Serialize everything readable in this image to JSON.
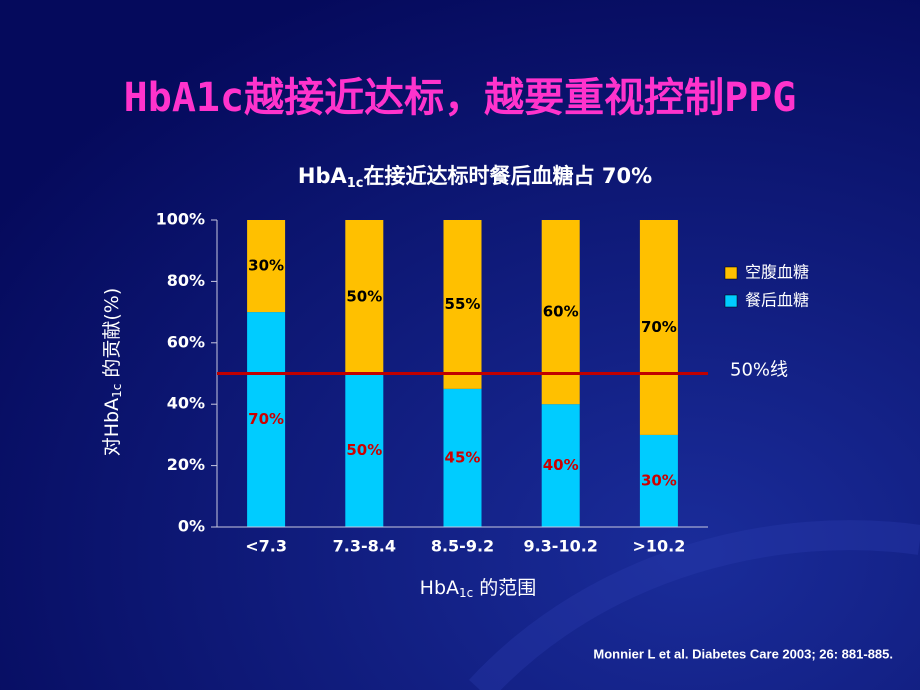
{
  "slide_title": "HbA1c越接近达标，越要重视控制PPG",
  "chart_data": {
    "type": "stacked_bar",
    "title": [
      "HbA",
      "1c",
      "在接近达标时餐后血糖占 70%"
    ],
    "y_label": [
      "对HbA",
      "1c",
      " 的贡献(%)"
    ],
    "x_label": [
      "HbA",
      "1c",
      " 的范围"
    ],
    "categories": [
      "<7.3",
      "7.3-8.4",
      "8.5-9.2",
      "9.3-10.2",
      ">10.2"
    ],
    "series": [
      {
        "name": "餐后血糖",
        "color": "#00ccff",
        "label_color": "#cc0000",
        "values": [
          70,
          50,
          45,
          40,
          30
        ],
        "value_labels": [
          "70%",
          "50%",
          "45%",
          "40%",
          "30%"
        ]
      },
      {
        "name": "空腹血糖",
        "color": "#ffc000",
        "label_color": "#000000",
        "values": [
          30,
          50,
          55,
          60,
          70
        ],
        "value_labels": [
          "30%",
          "50%",
          "55%",
          "60%",
          "70%"
        ]
      }
    ],
    "ylim": [
      0,
      100
    ],
    "yticks": [
      {
        "value": 0,
        "label": "0%"
      },
      {
        "value": 20,
        "label": "20%"
      },
      {
        "value": 40,
        "label": "40%"
      },
      {
        "value": 60,
        "label": "60%"
      },
      {
        "value": 80,
        "label": "80%"
      },
      {
        "value": 100,
        "label": "100%"
      }
    ],
    "ref_line": {
      "value": 50,
      "label": "50%线",
      "color": "#c00000"
    },
    "legend": "right"
  },
  "citation": "Monnier L et al.  Diabetes Care 2003; 26: 881-885."
}
